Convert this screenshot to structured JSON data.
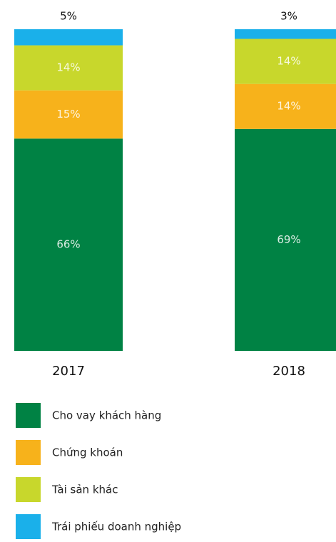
{
  "chart_data": {
    "type": "stacked_bar",
    "categories": [
      "2017",
      "2018"
    ],
    "series": [
      {
        "name": "Cho vay khách hàng",
        "color": "#008244",
        "values": [
          66,
          69
        ],
        "value_labels": [
          "66%",
          "69%"
        ]
      },
      {
        "name": "Chứng khoán",
        "color": "#f7b21b",
        "values": [
          15,
          14
        ],
        "value_labels": [
          "15%",
          "14%"
        ]
      },
      {
        "name": "Tài sản khác",
        "color": "#c8d72c",
        "values": [
          14,
          14
        ],
        "value_labels": [
          "14%",
          "14%"
        ]
      },
      {
        "name": "Trái phiếu doanh nghiệp",
        "color": "#1ab0ea",
        "values": [
          5,
          3
        ],
        "value_labels": [
          "5%",
          "3%"
        ]
      }
    ],
    "ylim": [
      0,
      100
    ]
  }
}
